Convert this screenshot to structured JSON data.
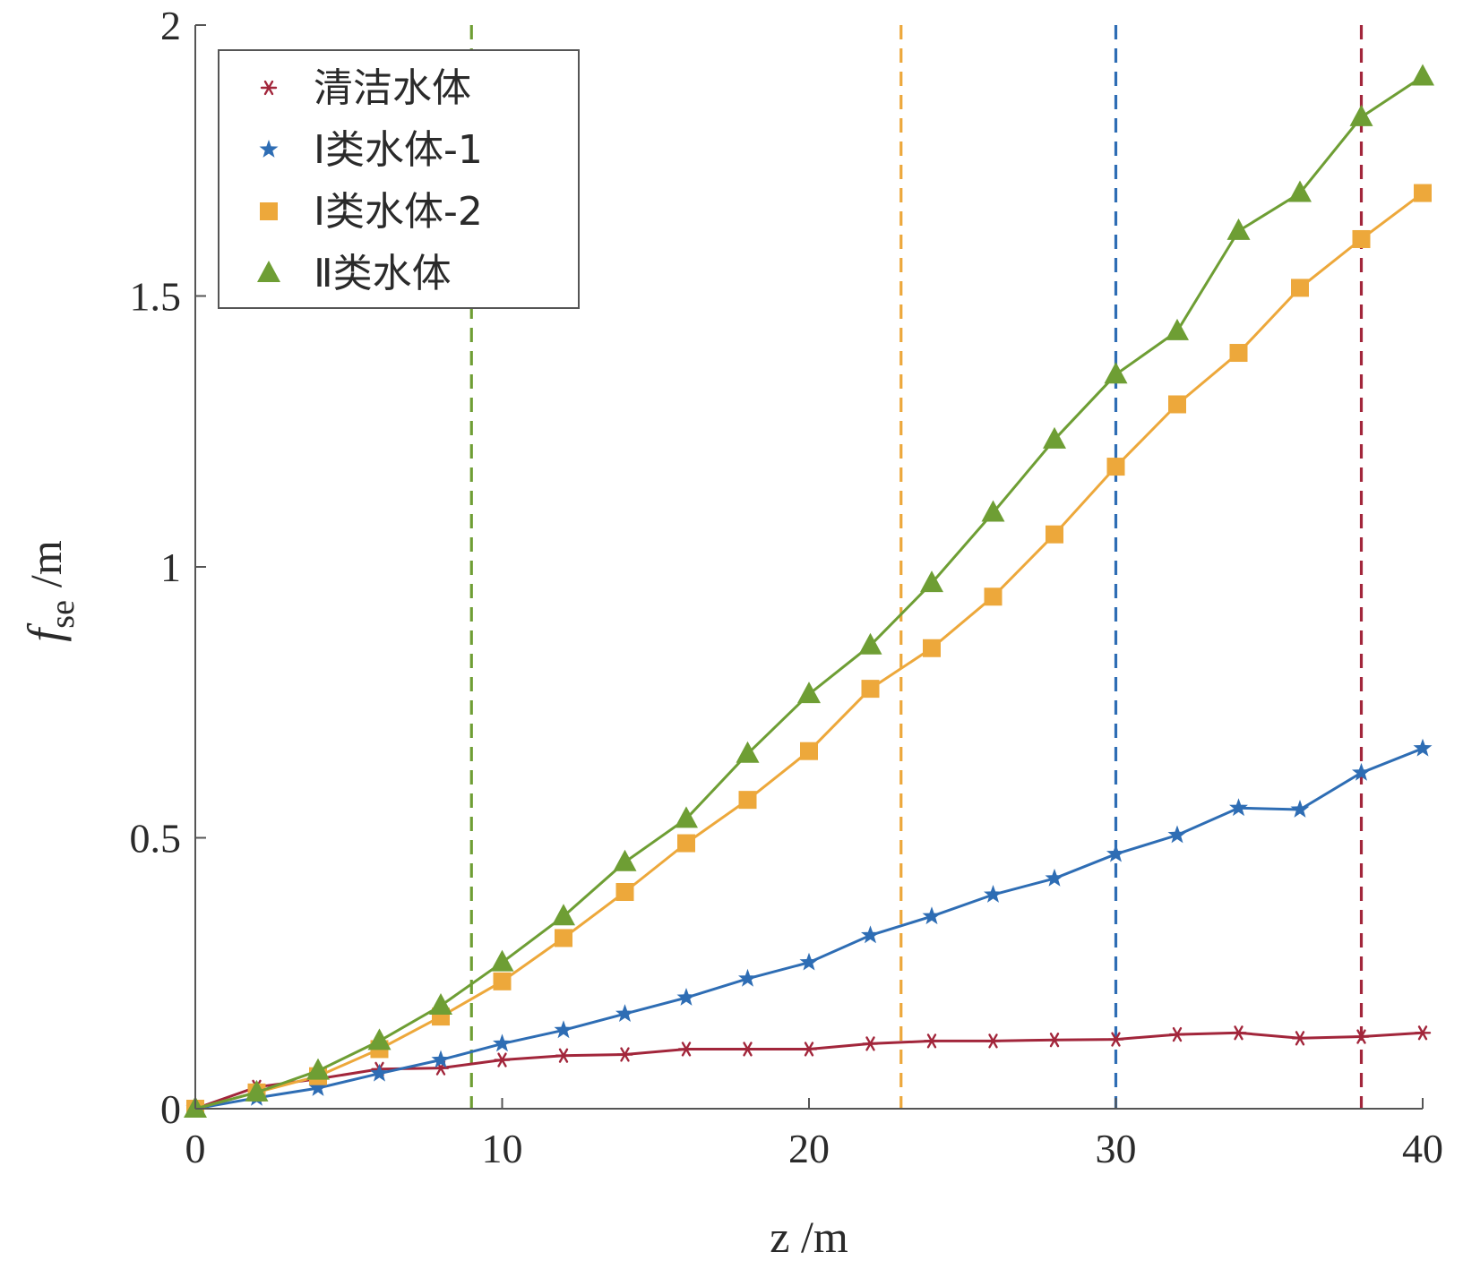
{
  "chart_data": {
    "type": "line",
    "x": [
      0,
      2,
      4,
      6,
      8,
      10,
      12,
      14,
      16,
      18,
      20,
      22,
      24,
      26,
      28,
      30,
      32,
      34,
      36,
      38,
      40
    ],
    "series": [
      {
        "name": "清洁水体",
        "color": "#A2263B",
        "marker": "asterisk",
        "values": [
          0,
          0.04,
          0.055,
          0.073,
          0.075,
          0.09,
          0.098,
          0.1,
          0.11,
          0.11,
          0.11,
          0.12,
          0.125,
          0.125,
          0.127,
          0.128,
          0.137,
          0.14,
          0.13,
          0.133,
          0.14
        ]
      },
      {
        "name": "Ⅰ类水体-1",
        "color": "#2E6DB4",
        "marker": "star",
        "values": [
          0,
          0.02,
          0.038,
          0.065,
          0.09,
          0.12,
          0.145,
          0.175,
          0.205,
          0.24,
          0.27,
          0.32,
          0.355,
          0.395,
          0.425,
          0.47,
          0.505,
          0.555,
          0.552,
          0.62,
          0.665
        ]
      },
      {
        "name": "Ⅰ类水体-2",
        "color": "#EDA83B",
        "marker": "square",
        "values": [
          0,
          0.03,
          0.06,
          0.11,
          0.17,
          0.235,
          0.315,
          0.4,
          0.49,
          0.57,
          0.66,
          0.775,
          0.85,
          0.945,
          1.06,
          1.185,
          1.3,
          1.395,
          1.515,
          1.605,
          1.69
        ]
      },
      {
        "name": "Ⅱ类水体",
        "color": "#6E9E34",
        "marker": "triangle",
        "values": [
          0,
          0.03,
          0.07,
          0.125,
          0.19,
          0.27,
          0.355,
          0.455,
          0.535,
          0.655,
          0.765,
          0.855,
          0.97,
          1.1,
          1.235,
          1.355,
          1.435,
          1.62,
          1.69,
          1.83,
          1.905
        ]
      }
    ],
    "vlines": [
      {
        "x": 9,
        "color": "#6E9E34"
      },
      {
        "x": 23,
        "color": "#EDA83B"
      },
      {
        "x": 30,
        "color": "#2E6DB4"
      },
      {
        "x": 38,
        "color": "#A2263B"
      }
    ],
    "xlabel": "z /m",
    "ylabel_main": "f",
    "ylabel_sub": "se",
    "ylabel_unit": "/m",
    "xlim": [
      0,
      40
    ],
    "ylim": [
      0,
      2
    ],
    "xticks": [
      0,
      10,
      20,
      30,
      40
    ],
    "xtick_labels": [
      "0",
      "10",
      "20",
      "30",
      "40"
    ],
    "yticks": [
      0,
      0.5,
      1,
      1.5,
      2
    ],
    "ytick_labels": [
      "0",
      "0.5",
      "1",
      "1.5",
      "2"
    ],
    "grid": false,
    "legend_position": "top-left",
    "axis_color": "#555555"
  }
}
